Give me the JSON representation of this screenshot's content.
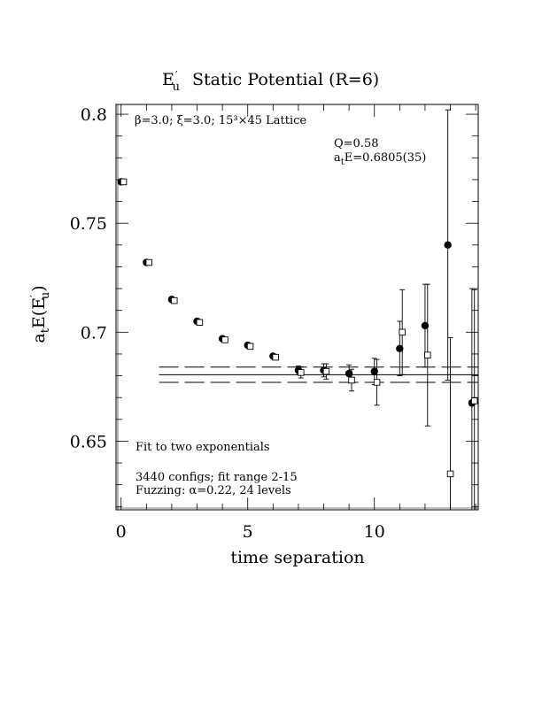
{
  "chart_data": {
    "type": "scatter",
    "title_main": "E",
    "title_sub": "u",
    "title_rest": "Static Potential (R=6)",
    "xlabel": "time separation",
    "ylabel_main": "a",
    "ylabel_sub": "t",
    "ylabel_rest": "E(E",
    "ylabel_sub2": "u",
    "ylabel_close": ")",
    "xlim": [
      -0.2,
      14.1
    ],
    "ylim": [
      0.6185,
      0.8045
    ],
    "xticks": [
      {
        "value": 0,
        "label": "0"
      },
      {
        "value": 5,
        "label": "5"
      },
      {
        "value": 10,
        "label": "10"
      }
    ],
    "yticks": [
      {
        "value": 0.65,
        "label": "0.65"
      },
      {
        "value": 0.7,
        "label": "0.7"
      },
      {
        "value": 0.75,
        "label": "0.75"
      },
      {
        "value": 0.8,
        "label": "0.8"
      }
    ],
    "annotations": {
      "lattice": "β=3.0; ξ=3.0; 15³×45 Lattice",
      "q": "Q=0.58",
      "energy_main": "a",
      "energy_sub": "t",
      "energy_rest": "E=0.6805(35)",
      "fit": "Fit to two exponentials",
      "configs": "3440 configs; fit range 2-15",
      "fuzzing": "Fuzzing: α=0.22, 24 levels"
    },
    "fit": {
      "x_start": 1.5,
      "x_end": 14.1,
      "value": 0.6805,
      "error": 0.0035
    },
    "series": [
      {
        "marker": "filled-circle",
        "points": [
          {
            "x": 0,
            "y": 0.769,
            "err": 0
          },
          {
            "x": 1,
            "y": 0.732,
            "err": 0
          },
          {
            "x": 2,
            "y": 0.715,
            "err": 0
          },
          {
            "x": 3,
            "y": 0.705,
            "err": 0
          },
          {
            "x": 4,
            "y": 0.697,
            "err": 0
          },
          {
            "x": 5,
            "y": 0.694,
            "err": 0
          },
          {
            "x": 6,
            "y": 0.689,
            "err": 0
          },
          {
            "x": 7,
            "y": 0.6825,
            "err": 0.002
          },
          {
            "x": 8,
            "y": 0.6825,
            "err": 0.003
          },
          {
            "x": 9,
            "y": 0.681,
            "err": 0.004
          },
          {
            "x": 10,
            "y": 0.682,
            "err": 0.006
          },
          {
            "x": 11,
            "y": 0.6925,
            "err": 0.0125
          },
          {
            "x": 12,
            "y": 0.703,
            "err": 0.019
          },
          {
            "x": 12.9,
            "y": 0.74,
            "err": 0.062
          },
          {
            "x": 13.85,
            "y": 0.6675,
            "err": 0.0525
          }
        ]
      },
      {
        "marker": "open-square",
        "points": [
          {
            "x": 0.1,
            "y": 0.769,
            "err": 0
          },
          {
            "x": 1.1,
            "y": 0.732,
            "err": 0
          },
          {
            "x": 2.1,
            "y": 0.7145,
            "err": 0
          },
          {
            "x": 3.1,
            "y": 0.7045,
            "err": 0
          },
          {
            "x": 4.1,
            "y": 0.6965,
            "err": 0
          },
          {
            "x": 5.1,
            "y": 0.6935,
            "err": 0
          },
          {
            "x": 6.1,
            "y": 0.6885,
            "err": 0
          },
          {
            "x": 7.1,
            "y": 0.6815,
            "err": 0.0025
          },
          {
            "x": 8.1,
            "y": 0.682,
            "err": 0.0035
          },
          {
            "x": 9.1,
            "y": 0.678,
            "err": 0.005
          },
          {
            "x": 10.1,
            "y": 0.677,
            "err": 0.0105
          },
          {
            "x": 11.1,
            "y": 0.7,
            "err": 0.0195
          },
          {
            "x": 12.1,
            "y": 0.6895,
            "err": 0.0325
          },
          {
            "x": 13.0,
            "y": 0.635,
            "err": 0.0625
          },
          {
            "x": 13.95,
            "y": 0.6685,
            "err": 0.051
          }
        ]
      }
    ]
  }
}
